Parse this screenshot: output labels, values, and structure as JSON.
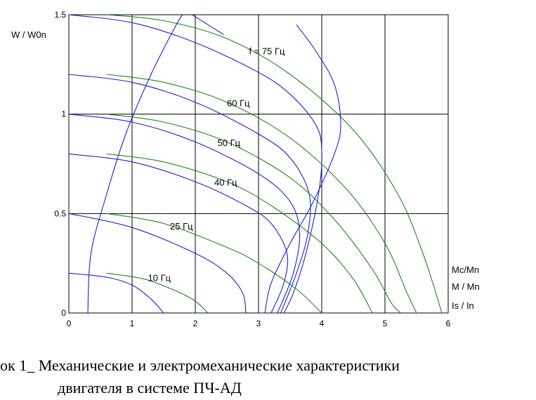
{
  "chart_data": {
    "type": "line",
    "ylabel": "W / W0n",
    "x_tick_labels": [
      "0",
      "1",
      "2",
      "3",
      "4",
      "5",
      "6"
    ],
    "y_tick_labels": [
      "0",
      "0.5",
      "1",
      "1.5"
    ],
    "xlim": [
      0,
      6
    ],
    "ylim": [
      0,
      1.5
    ],
    "grid": true,
    "right_labels": [
      "Mc/Mn",
      "M / Mn",
      "Is / In"
    ],
    "frequency_labels": [
      {
        "text": "f = 75 Гц",
        "x": 2.85,
        "y": 1.3
      },
      {
        "text": "60 Гц",
        "x": 2.5,
        "y": 1.04
      },
      {
        "text": "50 Гц",
        "x": 2.35,
        "y": 0.84
      },
      {
        "text": "40 Гц",
        "x": 2.3,
        "y": 0.64
      },
      {
        "text": "25 Гц",
        "x": 1.6,
        "y": 0.42
      },
      {
        "text": "10 Гц",
        "x": 1.25,
        "y": 0.16
      }
    ],
    "series": [
      {
        "group": "M / Mn",
        "color": "#1f1fcc",
        "values": [
          [
            0,
            1.5
          ],
          [
            1,
            1.46
          ],
          [
            2,
            1.36
          ],
          [
            3,
            1.21
          ],
          [
            3.5,
            1.1
          ],
          [
            3.9,
            0.95
          ],
          [
            4.0,
            0.82
          ],
          [
            3.95,
            0.6
          ],
          [
            3.75,
            0.3
          ],
          [
            3.55,
            0.1
          ],
          [
            3.4,
            0
          ]
        ]
      },
      {
        "group": "M / Mn",
        "color": "#1f1fcc",
        "values": [
          [
            0,
            1.2
          ],
          [
            1,
            1.16
          ],
          [
            2,
            1.06
          ],
          [
            3,
            0.9
          ],
          [
            3.5,
            0.78
          ],
          [
            3.8,
            0.6
          ],
          [
            3.78,
            0.4
          ],
          [
            3.6,
            0.2
          ],
          [
            3.35,
            0
          ]
        ]
      },
      {
        "group": "M / Mn",
        "color": "#1f1fcc",
        "values": [
          [
            0,
            1.0
          ],
          [
            1,
            0.96
          ],
          [
            2,
            0.86
          ],
          [
            3,
            0.7
          ],
          [
            3.5,
            0.56
          ],
          [
            3.65,
            0.4
          ],
          [
            3.55,
            0.2
          ],
          [
            3.3,
            0
          ]
        ]
      },
      {
        "group": "M / Mn",
        "color": "#1f1fcc",
        "values": [
          [
            0,
            0.8
          ],
          [
            1,
            0.76
          ],
          [
            2,
            0.66
          ],
          [
            2.8,
            0.54
          ],
          [
            3.2,
            0.45
          ],
          [
            3.45,
            0.3
          ],
          [
            3.4,
            0.15
          ],
          [
            3.2,
            0
          ]
        ]
      },
      {
        "group": "M / Mn",
        "color": "#1f1fcc",
        "values": [
          [
            0,
            0.5
          ],
          [
            1,
            0.43
          ],
          [
            2,
            0.3
          ],
          [
            2.5,
            0.2
          ],
          [
            2.75,
            0.1
          ],
          [
            2.8,
            0
          ]
        ]
      },
      {
        "group": "M / Mn",
        "color": "#1f1fcc",
        "values": [
          [
            0,
            0.2
          ],
          [
            0.6,
            0.18
          ],
          [
            1,
            0.14
          ],
          [
            1.3,
            0.07
          ],
          [
            1.5,
            0
          ]
        ]
      },
      {
        "group": "Mc/Mn",
        "color": "#1a8a1a",
        "values": [
          [
            0.6,
            1.5
          ],
          [
            1.5,
            1.47
          ],
          [
            2.5,
            1.38
          ],
          [
            3.5,
            1.2
          ],
          [
            4.5,
            0.92
          ],
          [
            5.2,
            0.6
          ],
          [
            5.6,
            0.3
          ],
          [
            5.9,
            0
          ]
        ]
      },
      {
        "group": "Mc/Mn",
        "color": "#1a8a1a",
        "values": [
          [
            0.6,
            1.2
          ],
          [
            1.5,
            1.16
          ],
          [
            2.5,
            1.06
          ],
          [
            3.5,
            0.88
          ],
          [
            4.4,
            0.62
          ],
          [
            5.0,
            0.35
          ],
          [
            5.35,
            0.1
          ],
          [
            5.5,
            0
          ]
        ]
      },
      {
        "group": "Mc/Mn",
        "color": "#1a8a1a",
        "values": [
          [
            0.6,
            1.0
          ],
          [
            1.5,
            0.96
          ],
          [
            2.5,
            0.86
          ],
          [
            3.5,
            0.68
          ],
          [
            4.2,
            0.47
          ],
          [
            4.8,
            0.22
          ],
          [
            5.1,
            0.05
          ],
          [
            5.25,
            0
          ]
        ]
      },
      {
        "group": "Mc/Mn",
        "color": "#1a8a1a",
        "values": [
          [
            0.6,
            0.8
          ],
          [
            1.5,
            0.76
          ],
          [
            2.5,
            0.66
          ],
          [
            3.2,
            0.54
          ],
          [
            4.0,
            0.35
          ],
          [
            4.5,
            0.17
          ],
          [
            4.8,
            0
          ]
        ]
      },
      {
        "group": "Mc/Mn",
        "color": "#1a8a1a",
        "values": [
          [
            0.6,
            0.5
          ],
          [
            1.5,
            0.45
          ],
          [
            2.5,
            0.33
          ],
          [
            3.0,
            0.25
          ],
          [
            3.6,
            0.12
          ],
          [
            4.0,
            0
          ]
        ]
      },
      {
        "group": "Mc/Mn",
        "color": "#1a8a1a",
        "values": [
          [
            0.6,
            0.2
          ],
          [
            1.2,
            0.17
          ],
          [
            1.7,
            0.11
          ],
          [
            2.0,
            0.06
          ],
          [
            2.2,
            0
          ]
        ]
      },
      {
        "group": "Is / In",
        "color": "#1f1fcc",
        "values": [
          [
            0.3,
            0
          ],
          [
            0.35,
            0.3
          ],
          [
            0.6,
            0.6
          ],
          [
            0.9,
            0.9
          ],
          [
            1.3,
            1.2
          ],
          [
            1.7,
            1.45
          ],
          [
            1.8,
            1.5
          ]
        ]
      },
      {
        "group": "Is / In",
        "color": "#1f1fcc",
        "values": [
          [
            1.95,
            1.5
          ],
          [
            2.2,
            1.45
          ],
          [
            2.45,
            1.4
          ]
        ]
      },
      {
        "group": "Is / In",
        "color": "#1f1fcc",
        "values": [
          [
            3.1,
            0
          ],
          [
            3.2,
            0.15
          ],
          [
            3.5,
            0.35
          ],
          [
            3.85,
            0.55
          ],
          [
            4.2,
            0.8
          ],
          [
            4.3,
            0.95
          ],
          [
            4.2,
            1.15
          ],
          [
            3.9,
            1.32
          ],
          [
            3.6,
            1.45
          ]
        ]
      }
    ]
  },
  "caption": {
    "line1": "ок 1_   Механические и электромеханические характеристики",
    "line2": "двигателя в системе ПЧ-АД"
  }
}
